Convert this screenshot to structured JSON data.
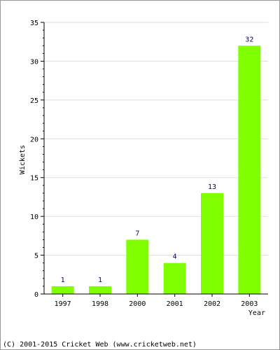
{
  "chart_data": {
    "type": "bar",
    "categories": [
      "1997",
      "1998",
      "2000",
      "2001",
      "2002",
      "2003"
    ],
    "values": [
      1,
      1,
      7,
      4,
      13,
      32
    ],
    "data_labels": [
      "1",
      "1",
      "7",
      "4",
      "13",
      "32"
    ],
    "title": "",
    "xlabel": "Year",
    "ylabel": "Wickets",
    "ylim": [
      0,
      35
    ],
    "y_ticks": [
      0,
      5,
      10,
      15,
      20,
      25,
      30,
      35
    ],
    "y_tick_labels": [
      "0",
      "5",
      "10",
      "15",
      "20",
      "25",
      "30",
      "35"
    ],
    "grid": true,
    "bar_color": "#7FFF00",
    "grid_color": "#dddddd"
  },
  "footer": {
    "copyright": "(C) 2001-2015 Cricket Web (www.cricketweb.net)"
  }
}
